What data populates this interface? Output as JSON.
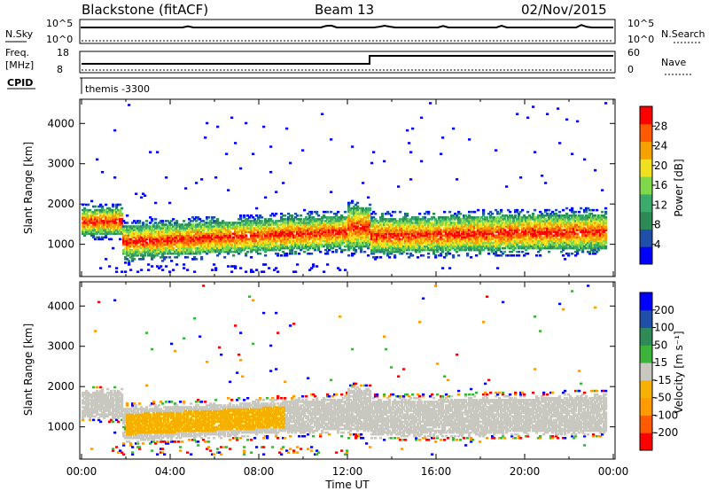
{
  "header": {
    "station": "Blackstone (fitACF)",
    "beam": "Beam 13",
    "date": "02/Nov/2015"
  },
  "strip": {
    "nsky_label": "N.Sky",
    "nsky_ticks": [
      "10^5",
      "10^0"
    ],
    "nsearch_label": "N.Search",
    "nsearch_ticks": [
      "10^5",
      "10^0"
    ],
    "freq_label": "Freq.",
    "freq_unit": "[MHz]",
    "freq_ticks": [
      "18",
      "8"
    ],
    "nave_label": "Nave",
    "nave_ticks": [
      "60",
      "0"
    ],
    "cpid_label": "CPID",
    "cpid_value": "themis -3300",
    "freq_step_hour": 13.0
  },
  "chart_data": [
    {
      "type": "heatmap",
      "panel": "power",
      "xlabel": "",
      "ylabel": "Slant Range [km]",
      "xlim": [
        0,
        24
      ],
      "ylim": [
        200,
        4600
      ],
      "yticks": [
        "4000",
        "3000",
        "2000",
        "1000"
      ],
      "colorbar": {
        "label": "Power [dB]",
        "ticks": [
          "28",
          "24",
          "20",
          "16",
          "12",
          "8",
          "4"
        ],
        "colors": [
          "#0000ff",
          "#1f4fa8",
          "#2e8b57",
          "#3caa6a",
          "#7fd84a",
          "#f0e020",
          "#f5a200",
          "#ff5a00",
          "#ff0000"
        ]
      },
      "bands": [
        {
          "t0": 0.0,
          "t1": 1.8,
          "r0": 1300,
          "r1": 1900,
          "level": "high"
        },
        {
          "t0": 1.8,
          "t1": 11.5,
          "r0": 700,
          "r1": 1500,
          "level": "high"
        },
        {
          "t0": 13.0,
          "t1": 23.5,
          "r0": 900,
          "r1": 1700,
          "level": "high"
        },
        {
          "t0": 12.0,
          "t1": 13.0,
          "r0": 900,
          "r1": 2100,
          "level": "mid"
        }
      ]
    },
    {
      "type": "heatmap",
      "panel": "velocity",
      "xlabel": "Time UT",
      "ylabel": "Slant Range [km]",
      "xlim": [
        0,
        24
      ],
      "ylim": [
        200,
        4600
      ],
      "xticks": [
        "00:00",
        "04:00",
        "08:00",
        "12:00",
        "16:00",
        "20:00",
        "00:00"
      ],
      "yticks": [
        "4000",
        "3000",
        "2000",
        "1000"
      ],
      "colorbar": {
        "label": "Velocity [m s⁻¹]",
        "ticks": [
          "200",
          "100",
          "50",
          "15",
          "-15",
          "-50",
          "-100",
          "-200"
        ],
        "colors": [
          "#ff0000",
          "#ff5a00",
          "#ff9a00",
          "#f5b000",
          "#c8c8c0",
          "#3cb43c",
          "#2e8b57",
          "#1f4fa8",
          "#0000ff"
        ]
      }
    }
  ]
}
